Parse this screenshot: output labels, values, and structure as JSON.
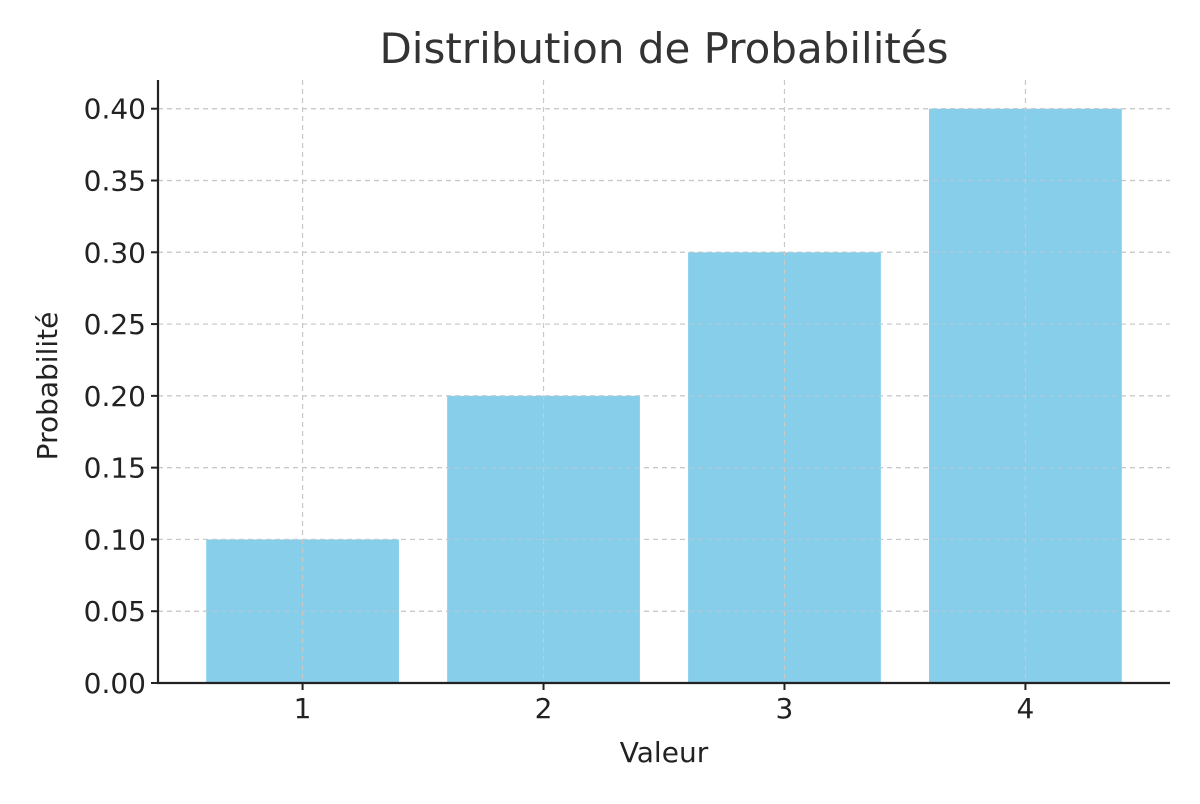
{
  "chart_data": {
    "type": "bar",
    "title": "Distribution de Probabilités",
    "xlabel": "Valeur",
    "ylabel": "Probabilité",
    "categories": [
      "1",
      "2",
      "3",
      "4"
    ],
    "values": [
      0.1,
      0.2,
      0.3,
      0.4
    ],
    "ylim": [
      0,
      0.42
    ],
    "yticks": [
      "0.00",
      "0.05",
      "0.10",
      "0.15",
      "0.20",
      "0.25",
      "0.30",
      "0.35",
      "0.40"
    ],
    "ytick_values": [
      0,
      0.05,
      0.1,
      0.15,
      0.2,
      0.25,
      0.3,
      0.35,
      0.4
    ],
    "grid": true,
    "bar_color": "#87CEEB"
  }
}
